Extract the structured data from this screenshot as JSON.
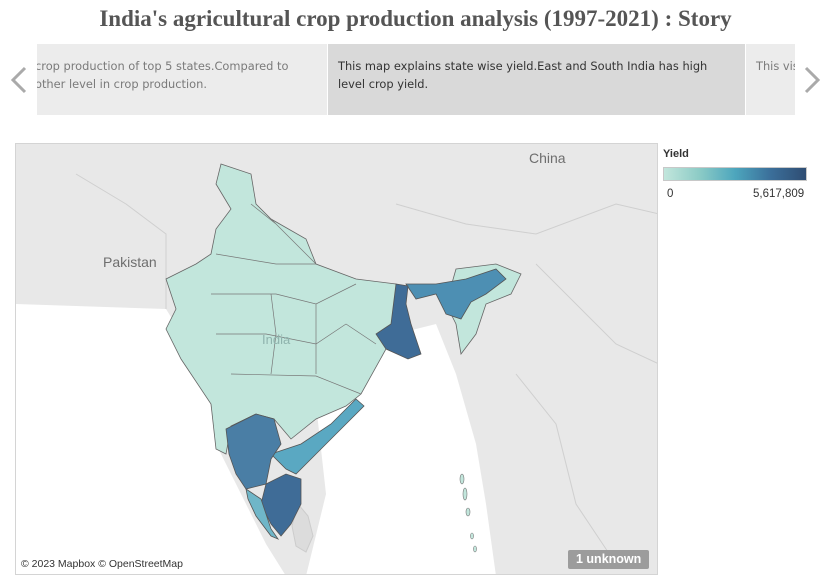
{
  "story": {
    "title": "India's agricultural crop production analysis (1997-2021) : Story",
    "captions": [
      "crop production of top 5 states.Compared to other level in crop production.",
      "This  map explains state wise yield.East and South India has high level crop yield.",
      "This vis take p"
    ]
  },
  "map": {
    "labels": {
      "china": "China",
      "pakistan": "Pakistan",
      "india": "India"
    },
    "attribution": "© 2023 Mapbox © OpenStreetMap",
    "unknown_badge": "1 unknown",
    "colors": {
      "low": "#c2e6dc",
      "mid": "#4da6bd",
      "high": "#3b6f9a",
      "border": "#555555",
      "land": "#e8e8e8",
      "water": "#ffffff"
    }
  },
  "legend": {
    "title": "Yield",
    "min_label": "0",
    "max_label": "5,617,809",
    "min_value": 0,
    "max_value": 5617809
  }
}
